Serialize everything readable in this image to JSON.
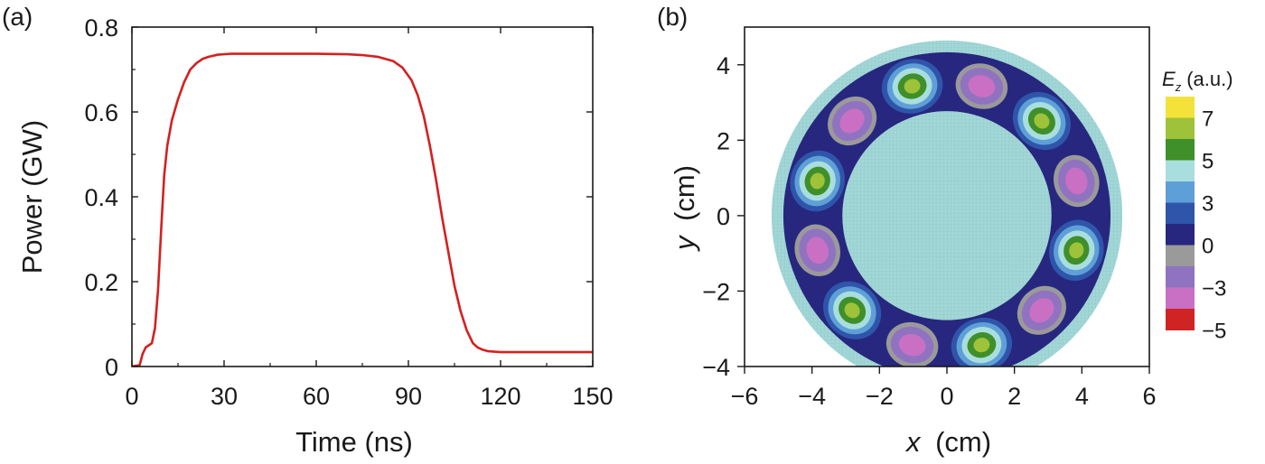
{
  "chart_data": [
    {
      "panel": "(a)",
      "type": "line",
      "xlabel": "Time (ns)",
      "ylabel": "Power (GW)",
      "xlim": [
        0,
        150
      ],
      "ylim": [
        0,
        0.8
      ],
      "xticks": [
        0,
        30,
        60,
        90,
        120,
        150
      ],
      "yticks": [
        0,
        0.2,
        0.4,
        0.6,
        0.8
      ],
      "xtick_labels": [
        "0",
        "30",
        "60",
        "90",
        "120",
        "150"
      ],
      "ytick_labels": [
        "0",
        "0.2",
        "0.4",
        "0.6",
        "0.8"
      ],
      "line_color": "#d42020",
      "series": [
        {
          "x": [
            0,
            2.5,
            3.5,
            4.5,
            5.5,
            6.5,
            7.5,
            8.5,
            9.5,
            10.5,
            11.5,
            13,
            15,
            17,
            19,
            21,
            23,
            25,
            28,
            32,
            40,
            50,
            60,
            70,
            75,
            80,
            85,
            88,
            91,
            93,
            95,
            97,
            99,
            101,
            103,
            105,
            107,
            109,
            111,
            112.5,
            114,
            116,
            118,
            120,
            130,
            140,
            150
          ],
          "y": [
            0,
            0.003,
            0.03,
            0.045,
            0.05,
            0.055,
            0.09,
            0.18,
            0.32,
            0.45,
            0.52,
            0.58,
            0.63,
            0.67,
            0.7,
            0.715,
            0.725,
            0.73,
            0.735,
            0.737,
            0.737,
            0.737,
            0.737,
            0.736,
            0.734,
            0.73,
            0.72,
            0.705,
            0.675,
            0.64,
            0.59,
            0.52,
            0.44,
            0.35,
            0.27,
            0.19,
            0.13,
            0.085,
            0.055,
            0.045,
            0.04,
            0.036,
            0.035,
            0.034,
            0.034,
            0.034,
            0.034
          ]
        }
      ]
    },
    {
      "panel": "(b)",
      "type": "heatmap",
      "xlabel_var": "x",
      "xlabel_unit": "(cm)",
      "ylabel_var": "y",
      "ylabel_unit": "(cm)",
      "xlim": [
        -6,
        6
      ],
      "ylim": [
        -4,
        5
      ],
      "xticks": [
        -6,
        -4,
        -2,
        0,
        2,
        4,
        6
      ],
      "yticks": [
        -4,
        -2,
        0,
        2,
        4
      ],
      "xtick_labels": [
        "−6",
        "−4",
        "−2",
        "0",
        "2",
        "4",
        "6"
      ],
      "ytick_labels": [
        "−4",
        "−2",
        "0",
        "2",
        "4"
      ],
      "inner_radius": 3.1,
      "outer_radius": 4.85,
      "mesh_radius": 5.2,
      "lobe_count": 12,
      "colorbar": {
        "title_var": "E",
        "title_sub": "z",
        "title_unit": "(a.u.)",
        "colors": [
          "#f4e23a",
          "#9ec23a",
          "#3f8f2a",
          "#a9dede",
          "#5f9fd8",
          "#2f55aa",
          "#27277f",
          "#9a9a9a",
          "#8f73c0",
          "#c970c4",
          "#d02424"
        ],
        "labels": [
          "7",
          "5",
          "3",
          "0",
          "−3",
          "−5"
        ]
      },
      "colors": {
        "mesh": "#a3d7d7",
        "mesh_line": "#7fbfbf",
        "ring_bg": "#27277f"
      }
    }
  ]
}
